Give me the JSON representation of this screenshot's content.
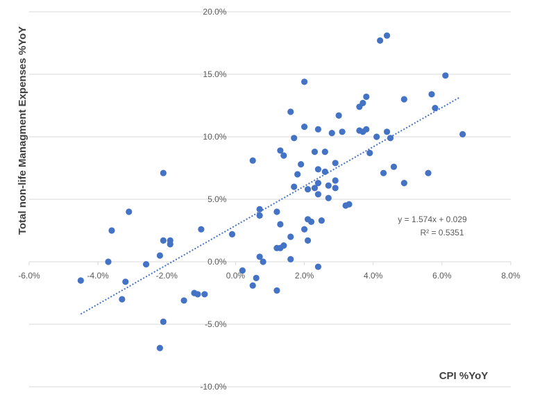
{
  "chart_data": {
    "type": "scatter",
    "xlabel": "CPI %YoY",
    "ylabel": "Total non-life  Managment Expenses %YoY",
    "xlim": [
      -0.06,
      0.08
    ],
    "ylim": [
      -0.1,
      0.2
    ],
    "x_ticks": [
      -0.06,
      -0.04,
      -0.02,
      0.0,
      0.02,
      0.04,
      0.06,
      0.08
    ],
    "x_tick_labels": [
      "-6.0%",
      "-4.0%",
      "-2.0%",
      "0.0%",
      "2.0%",
      "4.0%",
      "6.0%",
      "8.0%"
    ],
    "y_ticks": [
      -0.1,
      -0.05,
      0.0,
      0.05,
      0.1,
      0.15,
      0.2
    ],
    "y_tick_labels": [
      "-10.0%",
      "-5.0%",
      "0.0%",
      "5.0%",
      "10.0%",
      "15.0%",
      "20.0%"
    ],
    "grid": "horizontal",
    "marker_color": "#4472C4",
    "trendline": {
      "type": "linear",
      "slope": 1.574,
      "intercept": 0.029,
      "x_range": [
        -0.045,
        0.065
      ],
      "color": "#4472C4",
      "style": "dotted",
      "equation": "y = 1.574x + 0.029",
      "r_squared": "R² = 0.5351"
    },
    "series": [
      {
        "points": [
          [
            -0.045,
            -0.015
          ],
          [
            -0.037,
            0.0
          ],
          [
            -0.036,
            0.025
          ],
          [
            -0.032,
            -0.016
          ],
          [
            -0.031,
            0.04
          ],
          [
            -0.033,
            -0.03
          ],
          [
            -0.026,
            -0.002
          ],
          [
            -0.022,
            -0.069
          ],
          [
            -0.022,
            0.005
          ],
          [
            -0.021,
            -0.048
          ],
          [
            -0.021,
            0.017
          ],
          [
            -0.021,
            0.071
          ],
          [
            -0.019,
            0.017
          ],
          [
            -0.019,
            0.014
          ],
          [
            -0.015,
            -0.031
          ],
          [
            -0.012,
            -0.025
          ],
          [
            -0.011,
            -0.026
          ],
          [
            -0.01,
            0.026
          ],
          [
            -0.009,
            -0.026
          ],
          [
            -0.001,
            0.022
          ],
          [
            0.002,
            -0.007
          ],
          [
            0.005,
            -0.019
          ],
          [
            0.005,
            0.081
          ],
          [
            0.006,
            -0.013
          ],
          [
            0.007,
            0.004
          ],
          [
            0.007,
            0.042
          ],
          [
            0.007,
            0.037
          ],
          [
            0.008,
            0.0
          ],
          [
            0.012,
            -0.023
          ],
          [
            0.012,
            0.011
          ],
          [
            0.012,
            0.04
          ],
          [
            0.013,
            0.011
          ],
          [
            0.013,
            0.03
          ],
          [
            0.013,
            0.089
          ],
          [
            0.014,
            0.013
          ],
          [
            0.014,
            0.085
          ],
          [
            0.016,
            0.002
          ],
          [
            0.016,
            0.02
          ],
          [
            0.016,
            0.12
          ],
          [
            0.017,
            0.06
          ],
          [
            0.017,
            0.099
          ],
          [
            0.018,
            0.07
          ],
          [
            0.019,
            0.078
          ],
          [
            0.02,
            0.026
          ],
          [
            0.02,
            0.108
          ],
          [
            0.02,
            0.144
          ],
          [
            0.021,
            0.017
          ],
          [
            0.021,
            0.034
          ],
          [
            0.021,
            0.058
          ],
          [
            0.022,
            0.032
          ],
          [
            0.023,
            0.059
          ],
          [
            0.023,
            0.088
          ],
          [
            0.024,
            -0.004
          ],
          [
            0.024,
            0.054
          ],
          [
            0.024,
            0.063
          ],
          [
            0.024,
            0.074
          ],
          [
            0.024,
            0.106
          ],
          [
            0.025,
            0.033
          ],
          [
            0.026,
            0.072
          ],
          [
            0.026,
            0.088
          ],
          [
            0.027,
            0.051
          ],
          [
            0.027,
            0.061
          ],
          [
            0.028,
            0.103
          ],
          [
            0.029,
            0.059
          ],
          [
            0.029,
            0.065
          ],
          [
            0.029,
            0.079
          ],
          [
            0.03,
            0.117
          ],
          [
            0.031,
            0.104
          ],
          [
            0.032,
            0.045
          ],
          [
            0.033,
            0.046
          ],
          [
            0.036,
            0.105
          ],
          [
            0.036,
            0.124
          ],
          [
            0.037,
            0.104
          ],
          [
            0.037,
            0.127
          ],
          [
            0.038,
            0.106
          ],
          [
            0.038,
            0.132
          ],
          [
            0.039,
            0.087
          ],
          [
            0.041,
            0.1
          ],
          [
            0.042,
            0.177
          ],
          [
            0.043,
            0.071
          ],
          [
            0.044,
            0.104
          ],
          [
            0.044,
            0.181
          ],
          [
            0.045,
            0.099
          ],
          [
            0.046,
            0.076
          ],
          [
            0.049,
            0.063
          ],
          [
            0.049,
            0.13
          ],
          [
            0.056,
            0.071
          ],
          [
            0.057,
            0.134
          ],
          [
            0.058,
            0.123
          ],
          [
            0.061,
            0.149
          ],
          [
            0.066,
            0.102
          ]
        ]
      }
    ]
  }
}
